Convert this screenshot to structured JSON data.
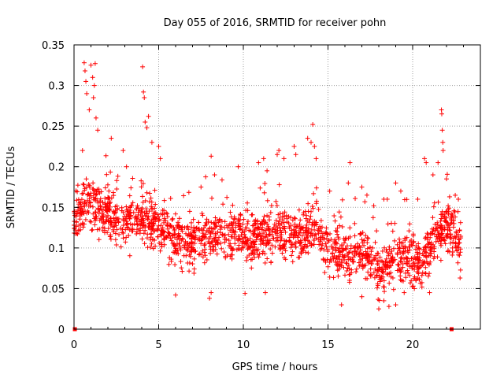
{
  "chart_data": {
    "type": "scatter",
    "title": "Day 055 of 2016, SRMTID for receiver pohn",
    "xlabel": "GPS time / hours",
    "ylabel": "SRMTID / TECUs",
    "xlim": [
      0,
      24
    ],
    "ylim": [
      0,
      0.35
    ],
    "x_ticks": [
      0,
      5,
      10,
      15,
      20
    ],
    "y_ticks": [
      0,
      0.05,
      0.1,
      0.15,
      0.2,
      0.25,
      0.3,
      0.35
    ],
    "x_tick_labels": [
      "0",
      "5",
      "10",
      "15",
      "20"
    ],
    "y_tick_labels": [
      "0",
      "0.05",
      "0.1",
      "0.15",
      "0.2",
      "0.25",
      "0.3",
      "0.35"
    ],
    "grid": true,
    "marker": "plus",
    "color": "#ff0000",
    "zero_markers": [
      0.05,
      22.3
    ],
    "trend": [
      [
        0.0,
        0.135
      ],
      [
        0.5,
        0.15
      ],
      [
        1.0,
        0.16
      ],
      [
        1.5,
        0.145
      ],
      [
        2.0,
        0.14
      ],
      [
        2.5,
        0.13
      ],
      [
        3.0,
        0.13
      ],
      [
        3.5,
        0.135
      ],
      [
        4.0,
        0.135
      ],
      [
        4.5,
        0.13
      ],
      [
        5.0,
        0.125
      ],
      [
        5.5,
        0.12
      ],
      [
        6.0,
        0.11
      ],
      [
        6.5,
        0.105
      ],
      [
        7.0,
        0.105
      ],
      [
        7.5,
        0.11
      ],
      [
        8.0,
        0.115
      ],
      [
        8.5,
        0.115
      ],
      [
        9.0,
        0.115
      ],
      [
        9.5,
        0.12
      ],
      [
        10.0,
        0.115
      ],
      [
        10.5,
        0.11
      ],
      [
        11.0,
        0.115
      ],
      [
        11.5,
        0.115
      ],
      [
        12.0,
        0.12
      ],
      [
        12.5,
        0.12
      ],
      [
        13.0,
        0.115
      ],
      [
        13.5,
        0.115
      ],
      [
        14.0,
        0.12
      ],
      [
        14.5,
        0.12
      ],
      [
        15.0,
        0.1
      ],
      [
        15.5,
        0.095
      ],
      [
        16.0,
        0.09
      ],
      [
        16.5,
        0.09
      ],
      [
        17.0,
        0.095
      ],
      [
        17.5,
        0.085
      ],
      [
        18.0,
        0.075
      ],
      [
        18.5,
        0.08
      ],
      [
        19.0,
        0.09
      ],
      [
        19.5,
        0.085
      ],
      [
        20.0,
        0.08
      ],
      [
        20.5,
        0.085
      ],
      [
        21.0,
        0.1
      ],
      [
        21.5,
        0.12
      ],
      [
        22.0,
        0.125
      ],
      [
        22.5,
        0.115
      ],
      [
        22.8,
        0.11
      ]
    ],
    "spikes": [
      [
        0.6,
        0.328
      ],
      [
        0.65,
        0.318
      ],
      [
        0.7,
        0.305
      ],
      [
        0.75,
        0.29
      ],
      [
        1.0,
        0.325
      ],
      [
        1.1,
        0.31
      ],
      [
        1.25,
        0.327
      ],
      [
        1.2,
        0.3
      ],
      [
        1.15,
        0.285
      ],
      [
        1.3,
        0.26
      ],
      [
        0.5,
        0.22
      ],
      [
        0.9,
        0.27
      ],
      [
        1.4,
        0.245
      ],
      [
        2.2,
        0.235
      ],
      [
        2.9,
        0.22
      ],
      [
        3.1,
        0.2
      ],
      [
        4.05,
        0.323
      ],
      [
        4.1,
        0.292
      ],
      [
        4.15,
        0.285
      ],
      [
        4.2,
        0.255
      ],
      [
        4.4,
        0.262
      ],
      [
        4.3,
        0.248
      ],
      [
        4.6,
        0.23
      ],
      [
        5.0,
        0.225
      ],
      [
        5.1,
        0.21
      ],
      [
        7.5,
        0.175
      ],
      [
        8.1,
        0.213
      ],
      [
        8.3,
        0.19
      ],
      [
        9.7,
        0.2
      ],
      [
        10.9,
        0.205
      ],
      [
        11.2,
        0.21
      ],
      [
        11.4,
        0.195
      ],
      [
        12.0,
        0.215
      ],
      [
        12.1,
        0.22
      ],
      [
        12.4,
        0.21
      ],
      [
        13.0,
        0.225
      ],
      [
        13.1,
        0.215
      ],
      [
        13.8,
        0.235
      ],
      [
        14.1,
        0.252
      ],
      [
        14.0,
        0.23
      ],
      [
        14.2,
        0.225
      ],
      [
        14.3,
        0.21
      ],
      [
        15.1,
        0.17
      ],
      [
        16.3,
        0.205
      ],
      [
        16.2,
        0.18
      ],
      [
        17.0,
        0.175
      ],
      [
        17.3,
        0.165
      ],
      [
        18.3,
        0.16
      ],
      [
        18.5,
        0.16
      ],
      [
        19.0,
        0.18
      ],
      [
        19.3,
        0.17
      ],
      [
        20.3,
        0.16
      ],
      [
        20.7,
        0.21
      ],
      [
        20.8,
        0.205
      ],
      [
        21.2,
        0.19
      ],
      [
        21.5,
        0.205
      ],
      [
        21.7,
        0.27
      ],
      [
        21.72,
        0.265
      ],
      [
        21.75,
        0.245
      ],
      [
        21.78,
        0.23
      ],
      [
        21.8,
        0.22
      ],
      [
        22.0,
        0.185
      ],
      [
        22.7,
        0.16
      ]
    ],
    "lows": [
      [
        6.0,
        0.042
      ],
      [
        8.0,
        0.038
      ],
      [
        8.1,
        0.045
      ],
      [
        10.1,
        0.044
      ],
      [
        11.3,
        0.045
      ],
      [
        15.8,
        0.03
      ],
      [
        17.0,
        0.04
      ],
      [
        18.0,
        0.025
      ],
      [
        18.3,
        0.035
      ],
      [
        18.6,
        0.028
      ],
      [
        19.0,
        0.03
      ],
      [
        19.5,
        0.045
      ],
      [
        20.1,
        0.05
      ],
      [
        20.2,
        0.06
      ],
      [
        21.0,
        0.045
      ],
      [
        22.8,
        0.063
      ]
    ]
  }
}
